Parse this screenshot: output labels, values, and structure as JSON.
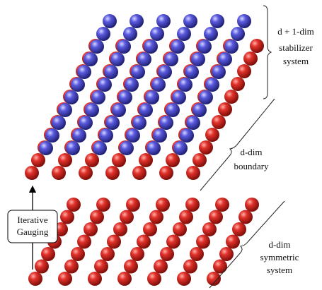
{
  "labels": {
    "stabilizer": [
      "d + 1-dim",
      "stabilizer",
      "system"
    ],
    "boundary": [
      "d-dim",
      "boundary"
    ],
    "gauging": [
      "Iterative",
      "Gauging"
    ],
    "symmetric": [
      "d-dim",
      "symmetric",
      "system"
    ]
  }
}
